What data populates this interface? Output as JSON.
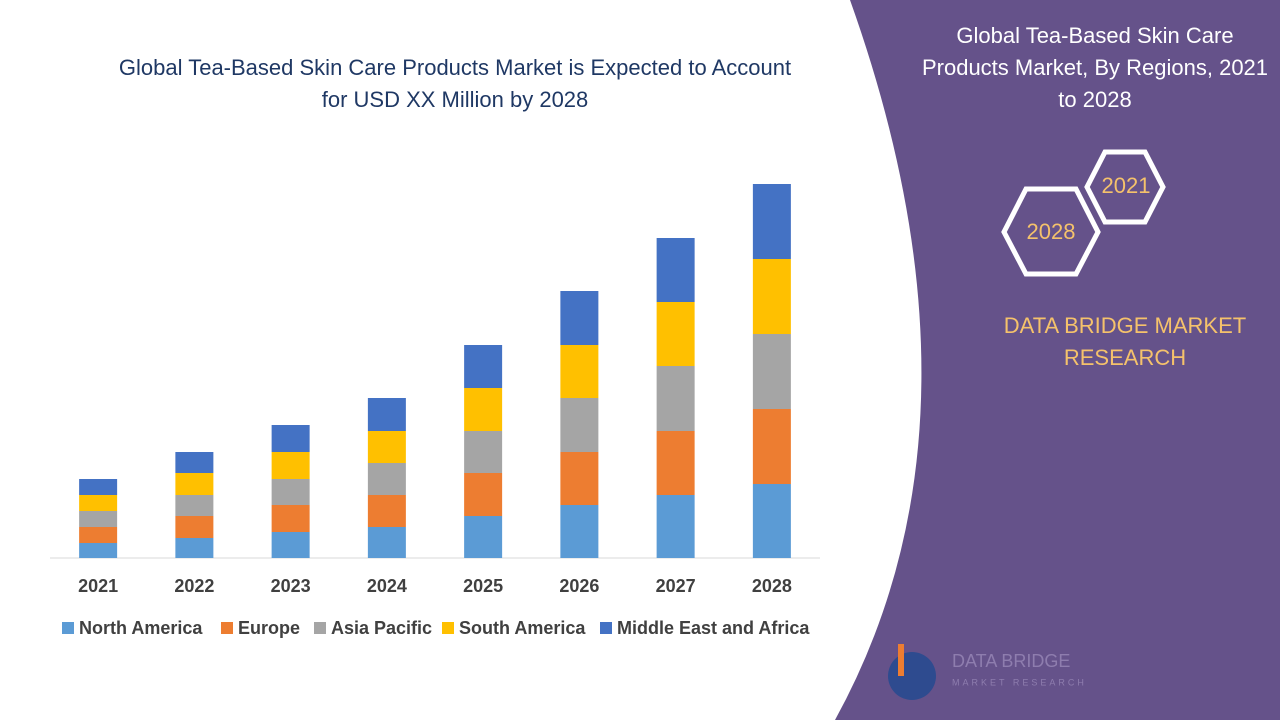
{
  "chart_data": {
    "type": "stacked_bar",
    "title": "Global Tea-Based Skin Care Products Market is Expected to Account for USD XX Million by 2028",
    "categories": [
      "2021",
      "2022",
      "2023",
      "2024",
      "2025",
      "2026",
      "2027",
      "2028"
    ],
    "series": [
      {
        "name": "North America",
        "color": "#5b9bd5",
        "values": [
          15,
          20,
          26,
          31,
          42,
          53,
          63,
          74
        ]
      },
      {
        "name": "Europe",
        "color": "#ed7d31",
        "values": [
          16,
          22,
          27,
          32,
          43,
          53,
          64,
          75
        ]
      },
      {
        "name": "Asia Pacific",
        "color": "#a5a5a5",
        "values": [
          16,
          21,
          26,
          32,
          42,
          54,
          65,
          75
        ]
      },
      {
        "name": "South America",
        "color": "#ffc000",
        "values": [
          16,
          22,
          27,
          32,
          43,
          53,
          64,
          75
        ]
      },
      {
        "name": "Middle East and Africa",
        "color": "#4472c4",
        "values": [
          16,
          21,
          27,
          33,
          43,
          54,
          64,
          75
        ]
      }
    ],
    "ylim": [
      0,
      400
    ],
    "legend": "bottom"
  },
  "panel": {
    "title": "Global Tea-Based Skin Care Products Market, By Regions, 2021 to 2028",
    "hex_right": "2021",
    "hex_left": "2028",
    "brand": "DATA BRIDGE MARKET RESEARCH",
    "logo_name": "DATA BRIDGE",
    "logo_sub": "MARKET RESEARCH"
  }
}
